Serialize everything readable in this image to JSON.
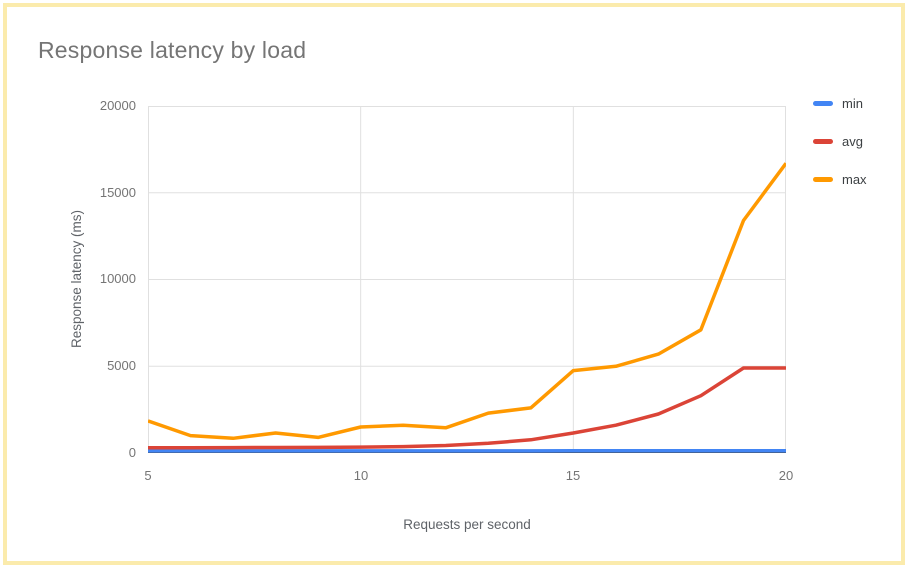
{
  "card": {
    "title": "Response latency by load"
  },
  "chart_data": {
    "type": "line",
    "title": "Response latency by load",
    "xlabel": "Requests per second",
    "ylabel": "Response latency (ms)",
    "x": [
      5,
      6,
      7,
      8,
      9,
      10,
      11,
      12,
      13,
      14,
      15,
      16,
      17,
      18,
      19,
      20
    ],
    "series": [
      {
        "name": "min",
        "color": "#4285F4",
        "values": [
          120,
          120,
          120,
          120,
          120,
          120,
          120,
          120,
          120,
          120,
          125,
          125,
          130,
          130,
          135,
          135
        ]
      },
      {
        "name": "avg",
        "color": "#DB4437",
        "values": [
          300,
          305,
          310,
          315,
          320,
          340,
          370,
          430,
          560,
          760,
          1150,
          1600,
          2250,
          3300,
          4900,
          4900
        ]
      },
      {
        "name": "max",
        "color": "#FF9900",
        "values": [
          1850,
          1000,
          850,
          1150,
          900,
          1500,
          1600,
          1450,
          2300,
          2600,
          4750,
          5000,
          5700,
          7100,
          13400,
          16700
        ]
      }
    ],
    "xlim": [
      5,
      20
    ],
    "ylim": [
      0,
      20000
    ],
    "xticks": [
      5,
      10,
      15,
      20
    ],
    "yticks": [
      0,
      5000,
      10000,
      15000,
      20000
    ],
    "grid": true,
    "legend_position": "right",
    "colors": {
      "grid": "#e0e0e0",
      "axis": "#424242",
      "tick_label": "#757575",
      "axis_title": "#5f6368",
      "title": "#757575",
      "card_border": "#fbebac"
    }
  }
}
